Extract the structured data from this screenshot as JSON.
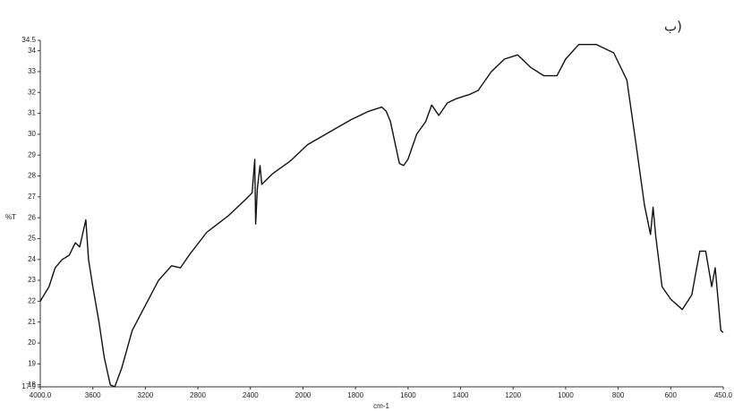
{
  "chart_data": {
    "type": "line",
    "annotation": "ب)",
    "x_label": "cm-1",
    "y_label": "%T",
    "xlim": [
      4000,
      450
    ],
    "ylim": [
      17.9,
      34.5
    ],
    "xticks": [
      {
        "value": 4000,
        "label": "4000.0"
      },
      3600,
      3200,
      2800,
      2400,
      2000,
      1800,
      1600,
      1400,
      1200,
      1000,
      800,
      600,
      {
        "value": 450,
        "label": "450.0"
      }
    ],
    "yticks": [
      17.9,
      18,
      19,
      20,
      21,
      22,
      23,
      24,
      25,
      26,
      27,
      28,
      29,
      30,
      31,
      32,
      33,
      34,
      34.5
    ],
    "series": [
      {
        "name": "%T",
        "color": "#111111",
        "x": [
          4000,
          3933,
          3887,
          3833,
          3780,
          3733,
          3700,
          3653,
          3633,
          3600,
          3553,
          3513,
          3467,
          3433,
          3380,
          3300,
          3200,
          3100,
          3000,
          2933,
          2867,
          2733,
          2567,
          2433,
          2387,
          2367,
          2360,
          2347,
          2327,
          2313,
          2233,
          2100,
          1983,
          1900,
          1817,
          1750,
          1700,
          1683,
          1667,
          1650,
          1633,
          1617,
          1600,
          1567,
          1533,
          1510,
          1483,
          1450,
          1417,
          1367,
          1333,
          1283,
          1233,
          1183,
          1133,
          1083,
          1033,
          1000,
          950,
          883,
          817,
          767,
          733,
          700,
          677,
          667,
          657,
          633,
          600,
          567,
          540,
          517,
          500,
          483,
          473,
          457,
          450
        ],
        "values": [
          22.0,
          22.7,
          23.6,
          24.0,
          24.2,
          24.8,
          24.6,
          25.9,
          24.0,
          22.7,
          21.0,
          19.3,
          18.0,
          17.9,
          18.8,
          20.6,
          21.8,
          23.0,
          23.7,
          23.6,
          24.2,
          25.3,
          26.1,
          26.9,
          27.2,
          28.8,
          25.7,
          27.4,
          28.5,
          27.6,
          28.1,
          28.7,
          29.5,
          30.1,
          30.7,
          31.1,
          31.3,
          31.1,
          30.6,
          29.6,
          28.6,
          28.5,
          28.8,
          30.0,
          30.6,
          31.4,
          30.9,
          31.5,
          31.7,
          31.9,
          32.1,
          33.0,
          33.6,
          33.8,
          33.2,
          32.8,
          32.8,
          33.6,
          34.3,
          34.3,
          33.9,
          32.6,
          29.6,
          26.6,
          25.2,
          26.5,
          25.1,
          22.7,
          22.1,
          21.6,
          22.3,
          24.4,
          24.4,
          22.7,
          23.6,
          20.6,
          20.5
        ]
      }
    ]
  }
}
